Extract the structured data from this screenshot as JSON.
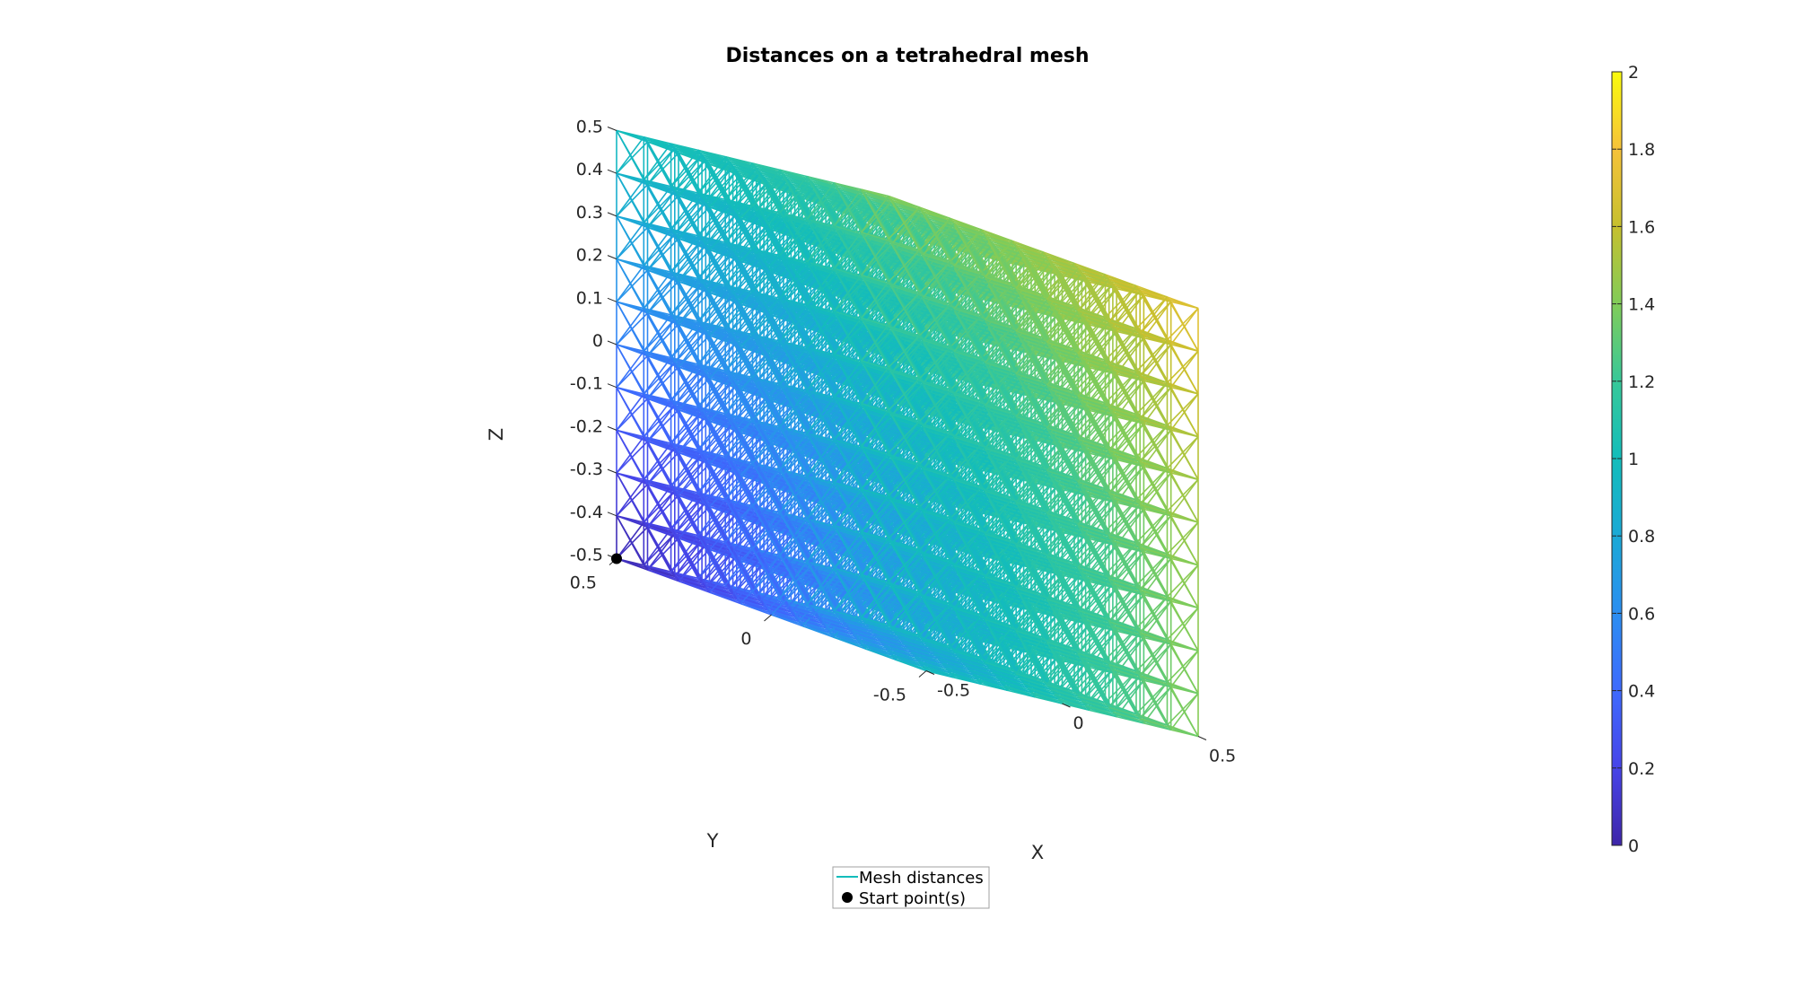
{
  "chart_data": {
    "type": "wireframe_mesh_3d",
    "title": "Distances on a tetrahedral mesh",
    "xlabel": "X",
    "ylabel": "Y",
    "zlabel": "Z",
    "xlim": [
      -0.5,
      0.5
    ],
    "ylim": [
      -0.5,
      0.5
    ],
    "zlim": [
      -0.5,
      0.5
    ],
    "x_ticks": [
      "-0.5",
      "0",
      "0.5"
    ],
    "y_ticks": [
      "-0.5",
      "0",
      "0.5"
    ],
    "z_ticks": [
      "-0.5",
      "-0.4",
      "-0.3",
      "-0.2",
      "-0.1",
      "0",
      "0.1",
      "0.2",
      "0.3",
      "0.4",
      "0.5"
    ],
    "grid_divisions": 10,
    "start_point": {
      "x": -0.5,
      "y": 0.5,
      "z": -0.5
    },
    "distance_range": [
      0,
      2
    ],
    "colormap": "parula",
    "colorbar": {
      "ticks": [
        "0",
        "0.2",
        "0.4",
        "0.6",
        "0.8",
        "1",
        "1.2",
        "1.4",
        "1.6",
        "1.8",
        "2"
      ],
      "lim": [
        0,
        2
      ],
      "colors": [
        "#3e26a8",
        "#4744e8",
        "#3e6afd",
        "#2c8ef1",
        "#1ba9d6",
        "#13bdbb",
        "#37c899",
        "#81cc59",
        "#c6c02e",
        "#f6c23a",
        "#f9fb0e"
      ]
    },
    "legend": {
      "placement": "bottom-center",
      "entries": [
        {
          "label": "Mesh distances",
          "marker": "line",
          "color": "#13bdbb"
        },
        {
          "label": "Start point(s)",
          "marker": "dot",
          "color": "#000000"
        }
      ]
    }
  }
}
